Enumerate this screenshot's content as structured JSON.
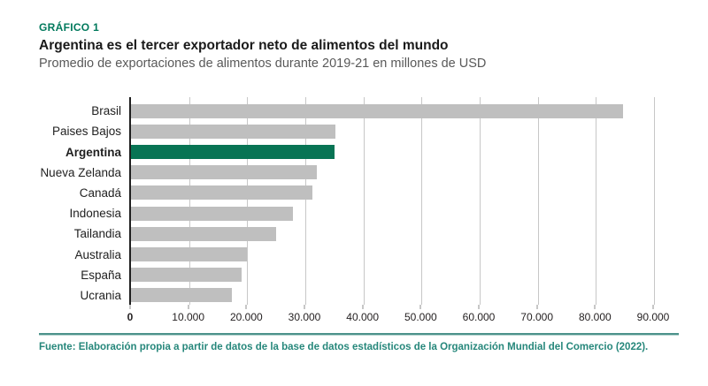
{
  "palette": {
    "kicker": "#00795C",
    "title": "#1A1A1A",
    "subtitle": "#595959",
    "footer": "#26877B",
    "divider": "#4D928B",
    "divider_light": "#B5D3CF"
  },
  "header": {
    "kicker": "GRÁFICO 1",
    "title": "Argentina es el tercer exportador neto de alimentos del mundo",
    "subtitle": "Promedio de exportaciones de alimentos durante 2019-21 en millones de USD"
  },
  "chart_data": {
    "type": "bar",
    "orientation": "horizontal",
    "title": "Argentina es el tercer exportador neto de alimentos del mundo",
    "subtitle": "Promedio de exportaciones de alimentos durante 2019-21 en millones de USD",
    "categories": [
      "Brasil",
      "Paises Bajos",
      "Argentina",
      "Nueva Zelanda",
      "Canadá",
      "Indonesia",
      "Tailandia",
      "Australia",
      "España",
      "Ucrania"
    ],
    "values": [
      84600,
      35200,
      35000,
      32000,
      31200,
      27800,
      24900,
      20000,
      19000,
      17400
    ],
    "highlight_category": "Argentina",
    "x_ticks": [
      "0",
      "10.000",
      "20.000",
      "30.000",
      "40.000",
      "50.000",
      "60.000",
      "70.000",
      "80.000",
      "90.000"
    ],
    "x_tick_values": [
      0,
      10000,
      20000,
      30000,
      40000,
      50000,
      60000,
      70000,
      80000,
      90000
    ],
    "xlim": [
      0,
      90000
    ],
    "grid": "vertical",
    "legend": "none",
    "colors": {
      "bar": "#BFBFBF",
      "highlight": "#087454"
    }
  },
  "footer": {
    "source": "Fuente: Elaboración propia a partir de datos de la base de datos estadísticos de la Organización Mundial del Comercio (2022)."
  }
}
